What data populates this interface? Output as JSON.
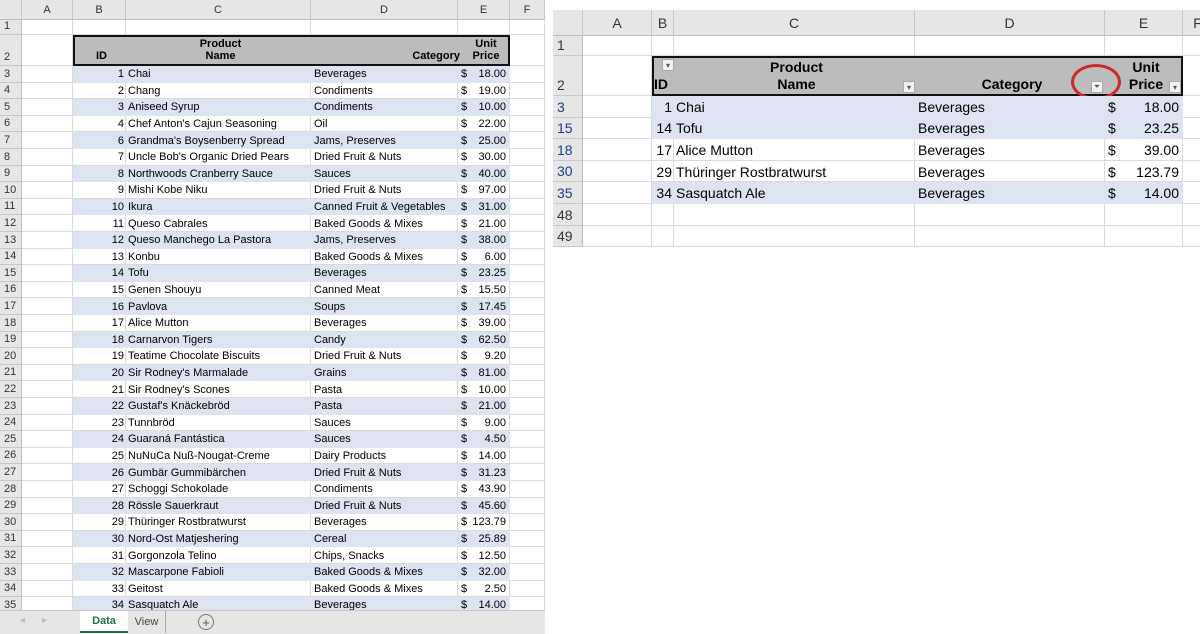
{
  "columns": [
    "A",
    "B",
    "C",
    "D",
    "E",
    "F"
  ],
  "header": {
    "id": "ID",
    "product_line1": "Product",
    "product_line2": "Name",
    "category": "Category",
    "price_line1": "Unit",
    "price_line2": "Price"
  },
  "sheet_tabs": [
    {
      "label": "Data",
      "active": true
    },
    {
      "label": "View",
      "active": false
    }
  ],
  "add_sheet_icon": "plus-circle-icon",
  "filter_icon": "filter-funnel-icon",
  "highlight_color": "#cc2b2b",
  "band_color": "#dce3f1",
  "left_rows": [
    {
      "row": 3,
      "id": 1,
      "name": "Chai",
      "category": "Beverages",
      "price": "18.00"
    },
    {
      "row": 4,
      "id": 2,
      "name": "Chang",
      "category": "Condiments",
      "price": "19.00"
    },
    {
      "row": 5,
      "id": 3,
      "name": "Aniseed Syrup",
      "category": "Condiments",
      "price": "10.00"
    },
    {
      "row": 6,
      "id": 4,
      "name": "Chef Anton's Cajun Seasoning",
      "category": "Oil",
      "price": "22.00"
    },
    {
      "row": 7,
      "id": 6,
      "name": "Grandma's Boysenberry Spread",
      "category": "Jams, Preserves",
      "price": "25.00"
    },
    {
      "row": 8,
      "id": 7,
      "name": "Uncle Bob's Organic Dried Pears",
      "category": "Dried Fruit & Nuts",
      "price": "30.00"
    },
    {
      "row": 9,
      "id": 8,
      "name": "Northwoods Cranberry Sauce",
      "category": "Sauces",
      "price": "40.00"
    },
    {
      "row": 10,
      "id": 9,
      "name": "Mishi Kobe Niku",
      "category": "Dried Fruit & Nuts",
      "price": "97.00"
    },
    {
      "row": 11,
      "id": 10,
      "name": "Ikura",
      "category": "Canned Fruit & Vegetables",
      "price": "31.00"
    },
    {
      "row": 12,
      "id": 11,
      "name": "Queso Cabrales",
      "category": "Baked Goods & Mixes",
      "price": "21.00"
    },
    {
      "row": 13,
      "id": 12,
      "name": "Queso Manchego La Pastora",
      "category": "Jams, Preserves",
      "price": "38.00"
    },
    {
      "row": 14,
      "id": 13,
      "name": "Konbu",
      "category": "Baked Goods & Mixes",
      "price": "6.00"
    },
    {
      "row": 15,
      "id": 14,
      "name": "Tofu",
      "category": "Beverages",
      "price": "23.25"
    },
    {
      "row": 16,
      "id": 15,
      "name": "Genen Shouyu",
      "category": "Canned Meat",
      "price": "15.50"
    },
    {
      "row": 17,
      "id": 16,
      "name": "Pavlova",
      "category": "Soups",
      "price": "17.45"
    },
    {
      "row": 18,
      "id": 17,
      "name": "Alice Mutton",
      "category": "Beverages",
      "price": "39.00"
    },
    {
      "row": 19,
      "id": 18,
      "name": "Carnarvon Tigers",
      "category": "Candy",
      "price": "62.50"
    },
    {
      "row": 20,
      "id": 19,
      "name": "Teatime Chocolate Biscuits",
      "category": "Dried Fruit & Nuts",
      "price": "9.20"
    },
    {
      "row": 21,
      "id": 20,
      "name": "Sir Rodney's Marmalade",
      "category": "Grains",
      "price": "81.00"
    },
    {
      "row": 22,
      "id": 21,
      "name": "Sir Rodney's Scones",
      "category": "Pasta",
      "price": "10.00"
    },
    {
      "row": 23,
      "id": 22,
      "name": "Gustaf's Knäckebröd",
      "category": "Pasta",
      "price": "21.00"
    },
    {
      "row": 24,
      "id": 23,
      "name": "Tunnbröd",
      "category": "Sauces",
      "price": "9.00"
    },
    {
      "row": 25,
      "id": 24,
      "name": "Guaraná Fantástica",
      "category": "Sauces",
      "price": "4.50"
    },
    {
      "row": 26,
      "id": 25,
      "name": "NuNuCa Nuß-Nougat-Creme",
      "category": "Dairy Products",
      "price": "14.00"
    },
    {
      "row": 27,
      "id": 26,
      "name": "Gumbär Gummibärchen",
      "category": "Dried Fruit & Nuts",
      "price": "31.23"
    },
    {
      "row": 28,
      "id": 27,
      "name": "Schoggi Schokolade",
      "category": "Condiments",
      "price": "43.90"
    },
    {
      "row": 29,
      "id": 28,
      "name": "Rössle Sauerkraut",
      "category": "Dried Fruit & Nuts",
      "price": "45.60"
    },
    {
      "row": 30,
      "id": 29,
      "name": "Thüringer Rostbratwurst",
      "category": "Beverages",
      "price": "123.79"
    },
    {
      "row": 31,
      "id": 30,
      "name": "Nord-Ost Matjeshering",
      "category": "Cereal",
      "price": "25.89"
    },
    {
      "row": 32,
      "id": 31,
      "name": "Gorgonzola Telino",
      "category": "Chips, Snacks",
      "price": "12.50"
    },
    {
      "row": 33,
      "id": 32,
      "name": "Mascarpone Fabioli",
      "category": "Baked Goods & Mixes",
      "price": "32.00"
    },
    {
      "row": 34,
      "id": 33,
      "name": "Geitost",
      "category": "Baked Goods & Mixes",
      "price": "2.50"
    },
    {
      "row": 35,
      "id": 34,
      "name": "Sasquatch Ale",
      "category": "Beverages",
      "price": "14.00"
    }
  ],
  "right_rows": [
    {
      "row": 3,
      "id": 1,
      "name": "Chai",
      "category": "Beverages",
      "price": "18.00"
    },
    {
      "row": 15,
      "id": 14,
      "name": "Tofu",
      "category": "Beverages",
      "price": "23.25"
    },
    {
      "row": 18,
      "id": 17,
      "name": "Alice Mutton",
      "category": "Beverages",
      "price": "39.00"
    },
    {
      "row": 30,
      "id": 29,
      "name": "Thüringer Rostbratwurst",
      "category": "Beverages",
      "price": "123.79"
    },
    {
      "row": 35,
      "id": 34,
      "name": "Sasquatch Ale",
      "category": "Beverages",
      "price": "14.00"
    }
  ],
  "right_empty_rows": [
    48,
    49
  ],
  "currency": "$"
}
